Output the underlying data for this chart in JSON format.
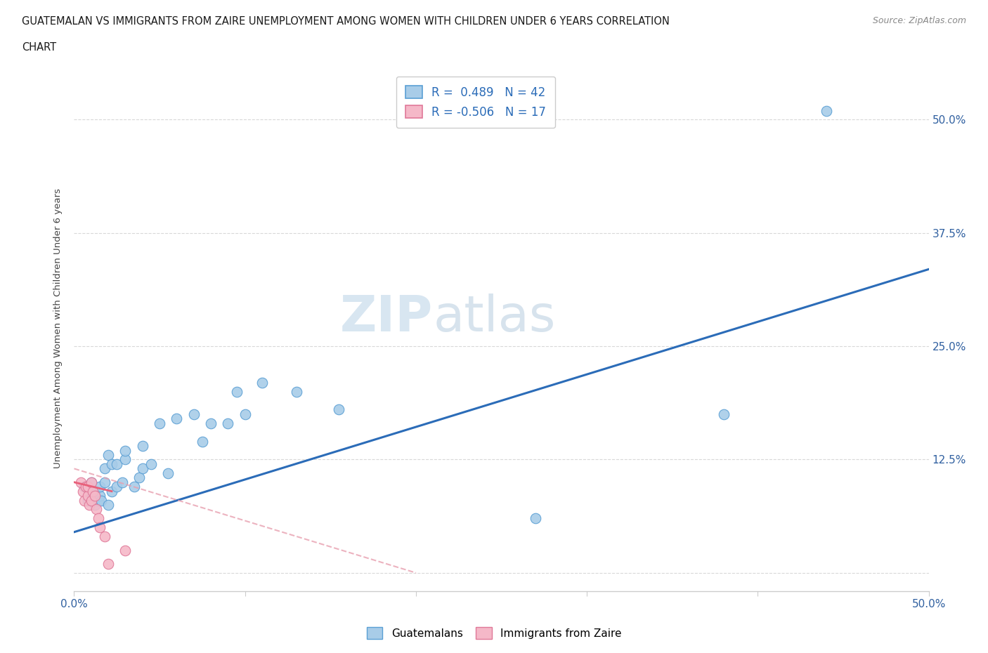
{
  "title_line1": "GUATEMALAN VS IMMIGRANTS FROM ZAIRE UNEMPLOYMENT AMONG WOMEN WITH CHILDREN UNDER 6 YEARS CORRELATION",
  "title_line2": "CHART",
  "source": "Source: ZipAtlas.com",
  "ylabel": "Unemployment Among Women with Children Under 6 years",
  "xlim": [
    0.0,
    0.5
  ],
  "ylim": [
    -0.02,
    0.56
  ],
  "yticks": [
    0.0,
    0.125,
    0.25,
    0.375,
    0.5
  ],
  "ytick_labels_right": [
    "",
    "12.5%",
    "25.0%",
    "37.5%",
    "50.0%"
  ],
  "guatemalan_color": "#a8cce8",
  "guatemalan_edge_color": "#5a9fd4",
  "zaire_color": "#f5b8c8",
  "zaire_edge_color": "#e07898",
  "guatemalan_line_color": "#2b6cb8",
  "zaire_line_color": "#e8607a",
  "R_guatemalan": 0.489,
  "N_guatemalan": 42,
  "R_zaire": -0.506,
  "N_zaire": 17,
  "background_color": "#ffffff",
  "grid_color": "#d8d8d8",
  "watermark_zip": "ZIP",
  "watermark_atlas": "atlas",
  "blue_line_x": [
    0.0,
    0.5
  ],
  "blue_line_y": [
    0.045,
    0.335
  ],
  "pink_line_x": [
    0.0,
    0.2
  ],
  "pink_line_y": [
    0.115,
    0.0
  ],
  "guatemalan_scatter_x": [
    0.006,
    0.008,
    0.01,
    0.01,
    0.01,
    0.012,
    0.012,
    0.014,
    0.015,
    0.015,
    0.016,
    0.018,
    0.018,
    0.02,
    0.02,
    0.022,
    0.022,
    0.025,
    0.025,
    0.028,
    0.03,
    0.03,
    0.035,
    0.038,
    0.04,
    0.04,
    0.045,
    0.05,
    0.055,
    0.06,
    0.07,
    0.075,
    0.08,
    0.09,
    0.095,
    0.1,
    0.11,
    0.13,
    0.155,
    0.27,
    0.38,
    0.44
  ],
  "guatemalan_scatter_y": [
    0.095,
    0.08,
    0.08,
    0.09,
    0.1,
    0.075,
    0.09,
    0.08,
    0.085,
    0.095,
    0.08,
    0.1,
    0.115,
    0.075,
    0.13,
    0.09,
    0.12,
    0.095,
    0.12,
    0.1,
    0.125,
    0.135,
    0.095,
    0.105,
    0.115,
    0.14,
    0.12,
    0.165,
    0.11,
    0.17,
    0.175,
    0.145,
    0.165,
    0.165,
    0.2,
    0.175,
    0.21,
    0.2,
    0.18,
    0.06,
    0.175,
    0.51
  ],
  "zaire_scatter_x": [
    0.004,
    0.005,
    0.006,
    0.007,
    0.008,
    0.008,
    0.009,
    0.01,
    0.01,
    0.011,
    0.012,
    0.013,
    0.014,
    0.015,
    0.018,
    0.02,
    0.03
  ],
  "zaire_scatter_y": [
    0.1,
    0.09,
    0.08,
    0.095,
    0.085,
    0.095,
    0.075,
    0.08,
    0.1,
    0.09,
    0.085,
    0.07,
    0.06,
    0.05,
    0.04,
    0.01,
    0.025
  ]
}
